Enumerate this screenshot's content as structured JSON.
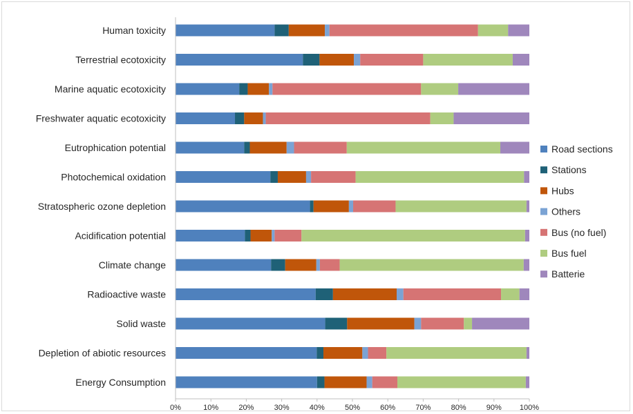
{
  "chart_data": {
    "type": "bar",
    "orientation": "horizontal",
    "stacked": "percent",
    "title": "",
    "xlabel": "",
    "ylabel": "",
    "xlim": [
      0,
      100
    ],
    "x_ticks": [
      "0%",
      "10%",
      "20%",
      "30%",
      "40%",
      "50%",
      "60%",
      "70%",
      "80%",
      "90%",
      "100%"
    ],
    "grid": false,
    "legend_position": "right",
    "categories": [
      "Human toxicity",
      "Terrestrial ecotoxicity",
      "Marine aquatic ecotoxicity",
      "Freshwater aquatic ecotoxicity",
      "Eutrophication potential",
      "Photochemical oxidation",
      "Stratospheric ozone depletion",
      "Acidification potential",
      "Climate change",
      "Radioactive waste",
      "Solid waste",
      "Depletion of abiotic resources",
      "Energy Consumption"
    ],
    "series": [
      {
        "name": "Road sections",
        "color": "#4f81bd",
        "values": [
          28.0,
          36.0,
          18.0,
          16.8,
          19.4,
          26.8,
          38.0,
          19.6,
          27.0,
          39.6,
          42.3,
          39.9,
          40.0
        ]
      },
      {
        "name": "Stations",
        "color": "#1f6177",
        "values": [
          4.0,
          4.7,
          2.4,
          2.6,
          1.6,
          2.1,
          1.0,
          1.6,
          4.0,
          4.9,
          6.2,
          1.9,
          2.1
        ]
      },
      {
        "name": "Hubs",
        "color": "#c0560a",
        "values": [
          10.2,
          9.7,
          6.0,
          5.3,
          10.4,
          8.0,
          10.0,
          6.0,
          8.8,
          18.0,
          19.0,
          11.0,
          11.9
        ]
      },
      {
        "name": "Others",
        "color": "#7ba3d4",
        "values": [
          1.3,
          1.8,
          1.0,
          0.8,
          2.1,
          1.4,
          1.2,
          0.8,
          1.0,
          1.9,
          1.9,
          1.6,
          1.6
        ]
      },
      {
        "name": "Bus (no fuel)",
        "color": "#d67474",
        "values": [
          42.0,
          17.8,
          42.0,
          46.5,
          14.9,
          12.6,
          12.0,
          7.6,
          5.6,
          27.6,
          12.1,
          5.2,
          7.1
        ]
      },
      {
        "name": "Bus fuel",
        "color": "#afcc80",
        "values": [
          8.5,
          25.3,
          10.5,
          6.6,
          43.4,
          47.6,
          37.0,
          63.2,
          52.0,
          5.2,
          2.3,
          39.6,
          36.3
        ]
      },
      {
        "name": "Batterie",
        "color": "#9f87bc",
        "values": [
          6.0,
          4.7,
          20.1,
          21.4,
          8.2,
          1.5,
          0.8,
          1.2,
          1.6,
          2.8,
          16.2,
          0.8,
          1.0
        ]
      }
    ]
  }
}
